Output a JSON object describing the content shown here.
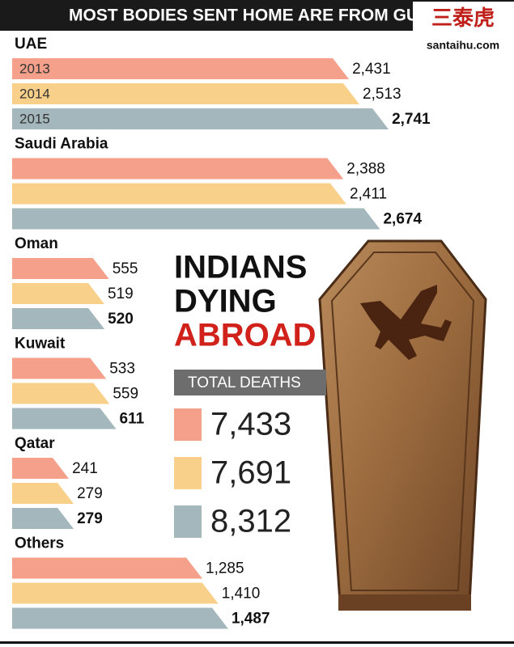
{
  "chart_data": {
    "type": "bar",
    "orientation": "horizontal",
    "title": "MOST BODIES SENT HOME ARE FROM GULF",
    "categories": [
      "UAE",
      "Saudi Arabia",
      "Oman",
      "Kuwait",
      "Qatar",
      "Others"
    ],
    "series": [
      {
        "name": "2013",
        "color": "#f4a08a",
        "values": [
          2431,
          2388,
          555,
          533,
          241,
          1285
        ],
        "value_labels": [
          "2,431",
          "2,388",
          "555",
          "533",
          "241",
          "1,285"
        ]
      },
      {
        "name": "2014",
        "color": "#f9d08a",
        "values": [
          2513,
          2411,
          519,
          559,
          279,
          1410
        ],
        "value_labels": [
          "2,513",
          "2,411",
          "519",
          "559",
          "279",
          "1,410"
        ]
      },
      {
        "name": "2015",
        "color": "#a3b7bd",
        "values": [
          2741,
          2674,
          520,
          611,
          279,
          1487
        ],
        "value_labels": [
          "2,741",
          "2,674",
          "520",
          "611",
          "279",
          "1,487"
        ]
      }
    ],
    "xlim": [
      0,
      3000
    ],
    "annotations": [
      "INDIANS",
      "DYING",
      "ABROAD"
    ],
    "totals": {
      "title": "TOTAL DEATHS",
      "values": [
        7433,
        7691,
        8312
      ],
      "value_labels": [
        "7,433",
        "7,691",
        "8,312"
      ]
    }
  },
  "watermark": {
    "logo": "三泰虎",
    "site": "santaihu.com"
  }
}
